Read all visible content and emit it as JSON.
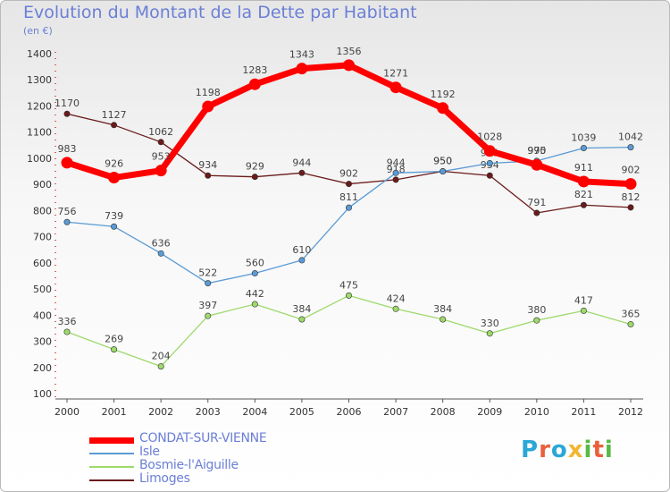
{
  "header": {
    "title": "Evolution du Montant de la Dette par Habitant",
    "unit": "(en €)"
  },
  "logo": {
    "text": "Proxiti",
    "colors": [
      "#2aa7d6",
      "#e8603c",
      "#2aa7d6",
      "#f2b632",
      "#5ab946",
      "#e8603c",
      "#5ab946"
    ]
  },
  "chart_data": {
    "type": "line",
    "title": "Evolution du Montant de la Dette par Habitant",
    "ylabel": "(en €)",
    "xlabel": "",
    "x": [
      "2000",
      "2001",
      "2002",
      "2003",
      "2004",
      "2005",
      "2006",
      "2007",
      "2008",
      "2009",
      "2010",
      "2011",
      "2012"
    ],
    "ylim": [
      100,
      1400
    ],
    "yticks": [
      100,
      200,
      300,
      400,
      500,
      600,
      700,
      800,
      900,
      1000,
      1100,
      1200,
      1300,
      1400
    ],
    "grid": false,
    "legend": "bottom-left",
    "series": [
      {
        "name": "Limoges",
        "color": "#6b1a1a",
        "values": [
          1170,
          1127,
          1062,
          934,
          929,
          944,
          902,
          918,
          950,
          934,
          791,
          821,
          812
        ]
      },
      {
        "name": "Isle",
        "color": "#5a9bd5",
        "values": [
          756,
          739,
          636,
          522,
          560,
          610,
          811,
          944,
          950,
          981,
          990,
          1039,
          1042
        ]
      },
      {
        "name": "Bosmie-l'Aiguille",
        "color": "#9ed96b",
        "values": [
          336,
          269,
          204,
          397,
          442,
          384,
          475,
          424,
          384,
          330,
          380,
          417,
          365
        ]
      },
      {
        "name": "CONDAT-SUR-VIENNE",
        "color": "#ff0000",
        "values": [
          983,
          926,
          953,
          1198,
          1283,
          1343,
          1356,
          1271,
          1192,
          1028,
          975,
          911,
          902
        ]
      }
    ],
    "legend_order": [
      "CONDAT-SUR-VIENNE",
      "Isle",
      "Bosmie-l'Aiguille",
      "Limoges"
    ]
  }
}
